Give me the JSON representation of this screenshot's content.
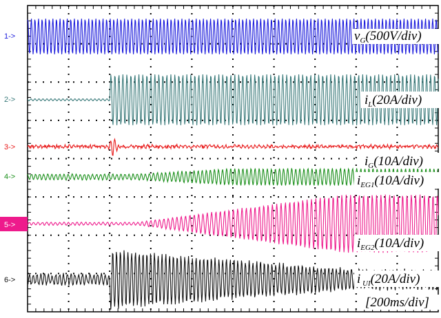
{
  "chart_data": {
    "type": "line",
    "title": "",
    "grid": true,
    "time_scale": "[200ms/div]",
    "channels": [
      {
        "marker": "1->",
        "label_main": "v",
        "label_sub": "G",
        "label_scale": "(500V/div)",
        "color": "#1a1adc"
      },
      {
        "marker": "2->",
        "label_main": "i",
        "label_sub": "L",
        "label_scale": "(20A/div)",
        "color": "#3a7a7a"
      },
      {
        "marker": "3->",
        "label_main": "i",
        "label_sub": "G",
        "label_scale": "(10A/div)",
        "color": "#e81818"
      },
      {
        "marker": "4->",
        "label_main": "i",
        "label_sub": "EG1",
        "label_scale": "(10A/div)",
        "color": "#1a8f1a"
      },
      {
        "marker": "5->",
        "label_main": "i",
        "label_sub": "EG2",
        "label_scale": "(10A/div)",
        "color": "#ee1a8c"
      },
      {
        "marker": "6->",
        "label_main": "i",
        "label_sub": " UI",
        "label_scale": "(20A/div)",
        "color": "#111111"
      }
    ]
  }
}
